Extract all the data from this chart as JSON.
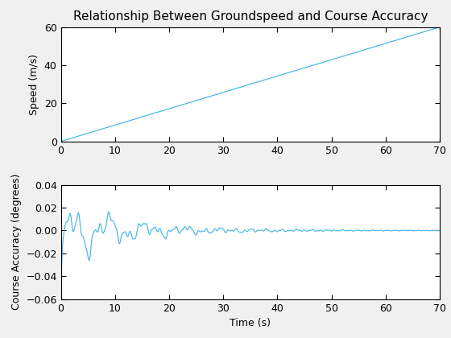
{
  "title": "Relationship Between Groundspeed and Course Accuracy",
  "xlabel": "Time (s)",
  "ylabel1": "Speed (m/s)",
  "ylabel2": "Course Accuracy (degrees)",
  "xlim": [
    0,
    70
  ],
  "ylim1": [
    0,
    60
  ],
  "ylim2": [
    -0.06,
    0.04
  ],
  "yticks1": [
    0,
    20,
    40,
    60
  ],
  "yticks2": [
    -0.06,
    -0.04,
    -0.02,
    0,
    0.02,
    0.04
  ],
  "xticks": [
    0,
    10,
    20,
    30,
    40,
    50,
    60,
    70
  ],
  "line_color": "#4db8e8",
  "background_color": "#ffffff",
  "figure_color": "#f0f0f0",
  "title_fontsize": 11,
  "label_fontsize": 9,
  "tick_fontsize": 9,
  "t_max": 70,
  "n_points": 1400,
  "speed_slope": 0.857,
  "course_initial": -0.05
}
